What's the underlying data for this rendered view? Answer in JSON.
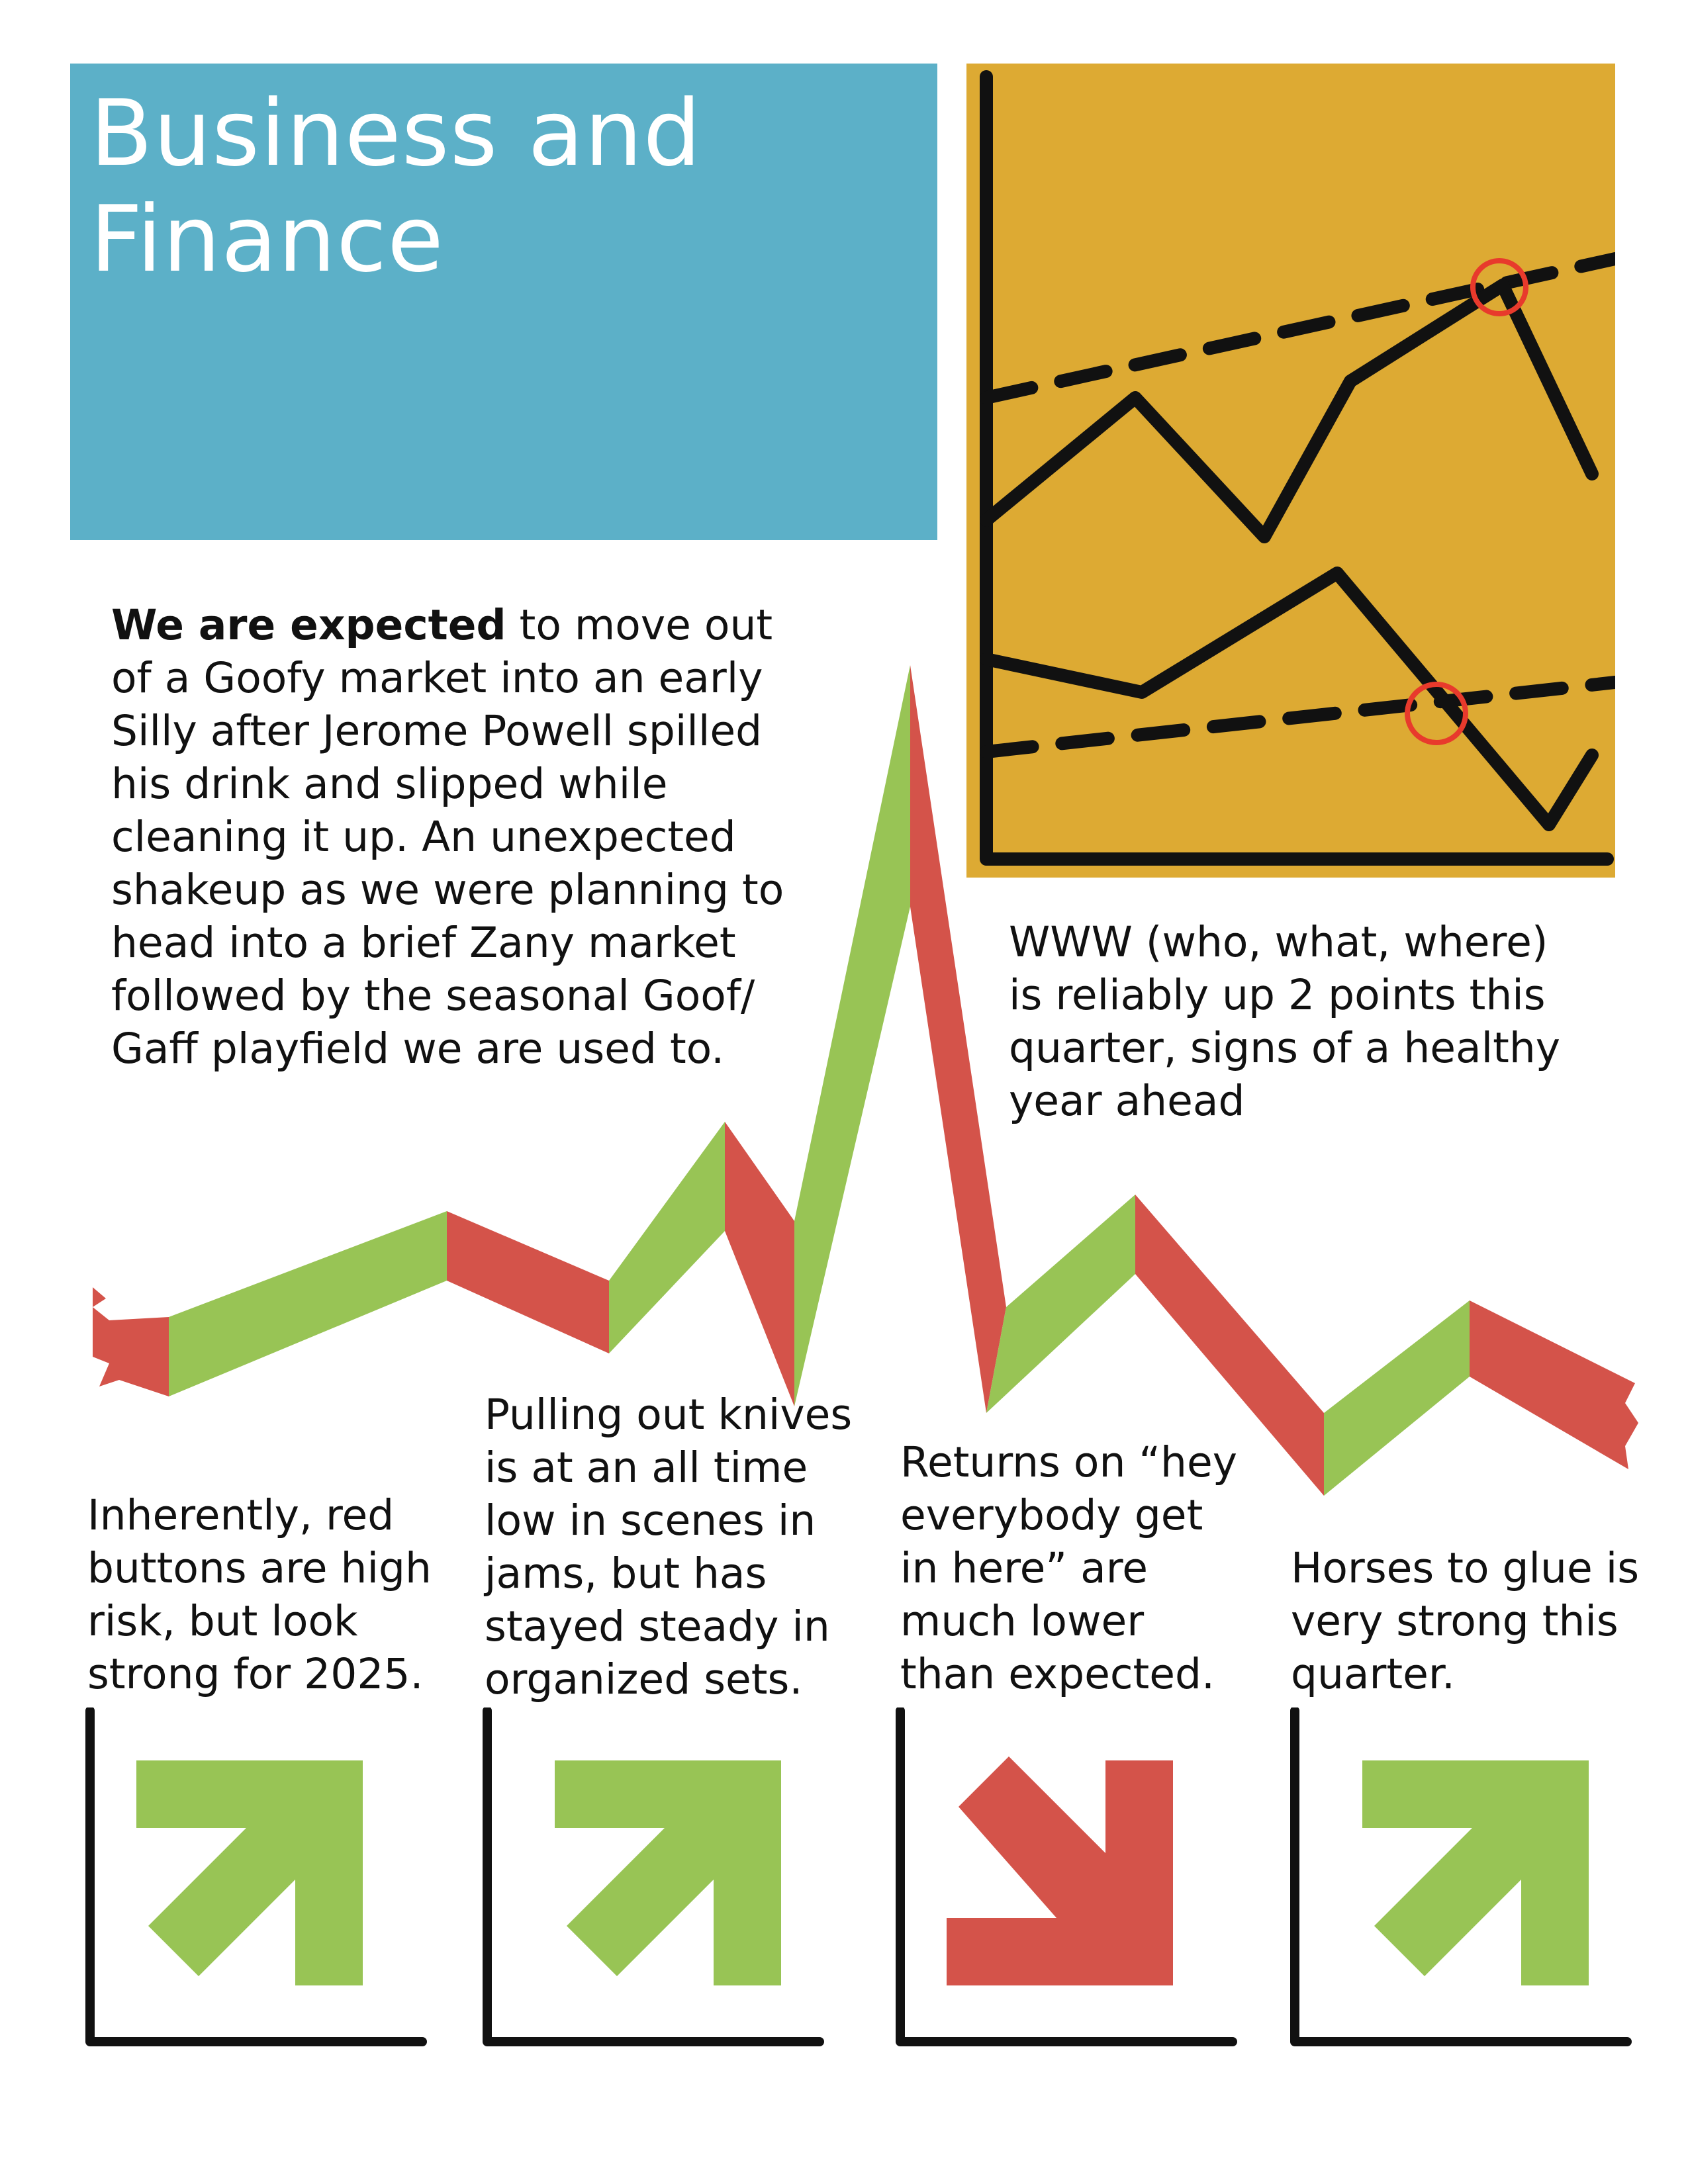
{
  "title": "Business and\nFinance",
  "intro": {
    "lead": "We are expected",
    "body": " to move out of a Goofy market into an early Silly after Jerome Powell spilled his drink and slipped while cleaning it up. An unexpected shakeup as we were planning to head into a brief Zany market followed by the seasonal Goof/ Gaff playfield we are used to."
  },
  "www_note": "WWW (who, what, where) is reliably up 2 points this quarter, signs of a healthy year ahead",
  "captions": [
    "Inherently, red buttons are high risk, but look strong for 2025.",
    "Pulling out knives is at an all time low in scenes in jams, but has stayed steady in organized sets.",
    "Returns on “hey everybody get in here” are much lower than expected.",
    "Horses to glue is very strong this quarter."
  ],
  "trends": [
    {
      "direction": "up",
      "color": "#98c455"
    },
    {
      "direction": "up",
      "color": "#98c455"
    },
    {
      "direction": "down",
      "color": "#d4534a"
    },
    {
      "direction": "up",
      "color": "#98c455"
    }
  ],
  "colors": {
    "title_bg": "#5cb0c8",
    "chart_bg": "#ddaa33",
    "up_green": "#98c455",
    "down_red": "#d4534a",
    "ink": "#111111",
    "marker": "#e83a2c"
  }
}
